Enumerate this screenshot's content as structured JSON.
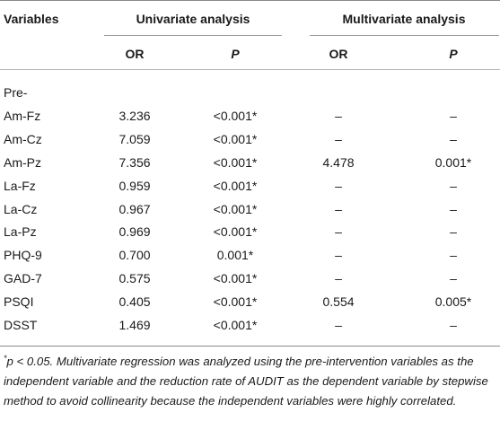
{
  "header": {
    "variables": "Variables",
    "univariate": "Univariate analysis",
    "multivariate": "Multivariate analysis",
    "or1": "OR",
    "p1": "P",
    "or2": "OR",
    "p2": "P"
  },
  "rows": [
    {
      "label": "Pre-",
      "or_u": "",
      "p_u": "",
      "or_m": "",
      "p_m": ""
    },
    {
      "label": "Am-Fz",
      "or_u": "3.236",
      "p_u": "<0.001*",
      "or_m": "–",
      "p_m": "–"
    },
    {
      "label": "Am-Cz",
      "or_u": "7.059",
      "p_u": "<0.001*",
      "or_m": "–",
      "p_m": "–"
    },
    {
      "label": "Am-Pz",
      "or_u": "7.356",
      "p_u": "<0.001*",
      "or_m": "4.478",
      "p_m": "0.001*"
    },
    {
      "label": "La-Fz",
      "or_u": "0.959",
      "p_u": "<0.001*",
      "or_m": "–",
      "p_m": "–"
    },
    {
      "label": "La-Cz",
      "or_u": "0.967",
      "p_u": "<0.001*",
      "or_m": "–",
      "p_m": "–"
    },
    {
      "label": "La-Pz",
      "or_u": "0.969",
      "p_u": "<0.001*",
      "or_m": "–",
      "p_m": "–"
    },
    {
      "label": "PHQ-9",
      "or_u": "0.700",
      "p_u": "0.001*",
      "or_m": "–",
      "p_m": "–"
    },
    {
      "label": "GAD-7",
      "or_u": "0.575",
      "p_u": "<0.001*",
      "or_m": "–",
      "p_m": "–"
    },
    {
      "label": "PSQI",
      "or_u": "0.405",
      "p_u": "<0.001*",
      "or_m": "0.554",
      "p_m": "0.005*"
    },
    {
      "label": "DSST",
      "or_u": "1.469",
      "p_u": "<0.001*",
      "or_m": "–",
      "p_m": "–"
    }
  ],
  "footnote": {
    "mark": "*",
    "text": "p < 0.05. Multivariate regression was analyzed using the pre-intervention variables as the independent variable and the reduction rate of AUDIT as the dependent variable by stepwise method to avoid collinearity because the independent variables were highly correlated."
  }
}
